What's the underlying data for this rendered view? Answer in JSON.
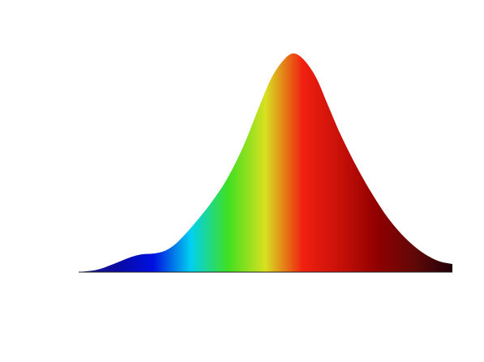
{
  "chart_data": {
    "type": "density",
    "x": [
      0,
      23,
      43,
      63,
      78,
      93,
      108,
      123,
      143,
      163,
      183,
      203,
      223,
      238,
      253,
      265,
      278,
      293,
      308,
      323,
      343,
      363,
      383,
      403,
      423,
      443,
      461
    ],
    "values": [
      0,
      3,
      10,
      18,
      22,
      23,
      27,
      38,
      60,
      85,
      115,
      155,
      205,
      240,
      262,
      270,
      262,
      240,
      205,
      170,
      130,
      95,
      65,
      42,
      25,
      14,
      10
    ],
    "gradient": [
      "#202080",
      "#0a0aa0",
      "#0010e0",
      "#00d0f0",
      "#40e020",
      "#d8e020",
      "#f02010",
      "#c81008",
      "#900000",
      "#600808",
      "#200008"
    ]
  }
}
